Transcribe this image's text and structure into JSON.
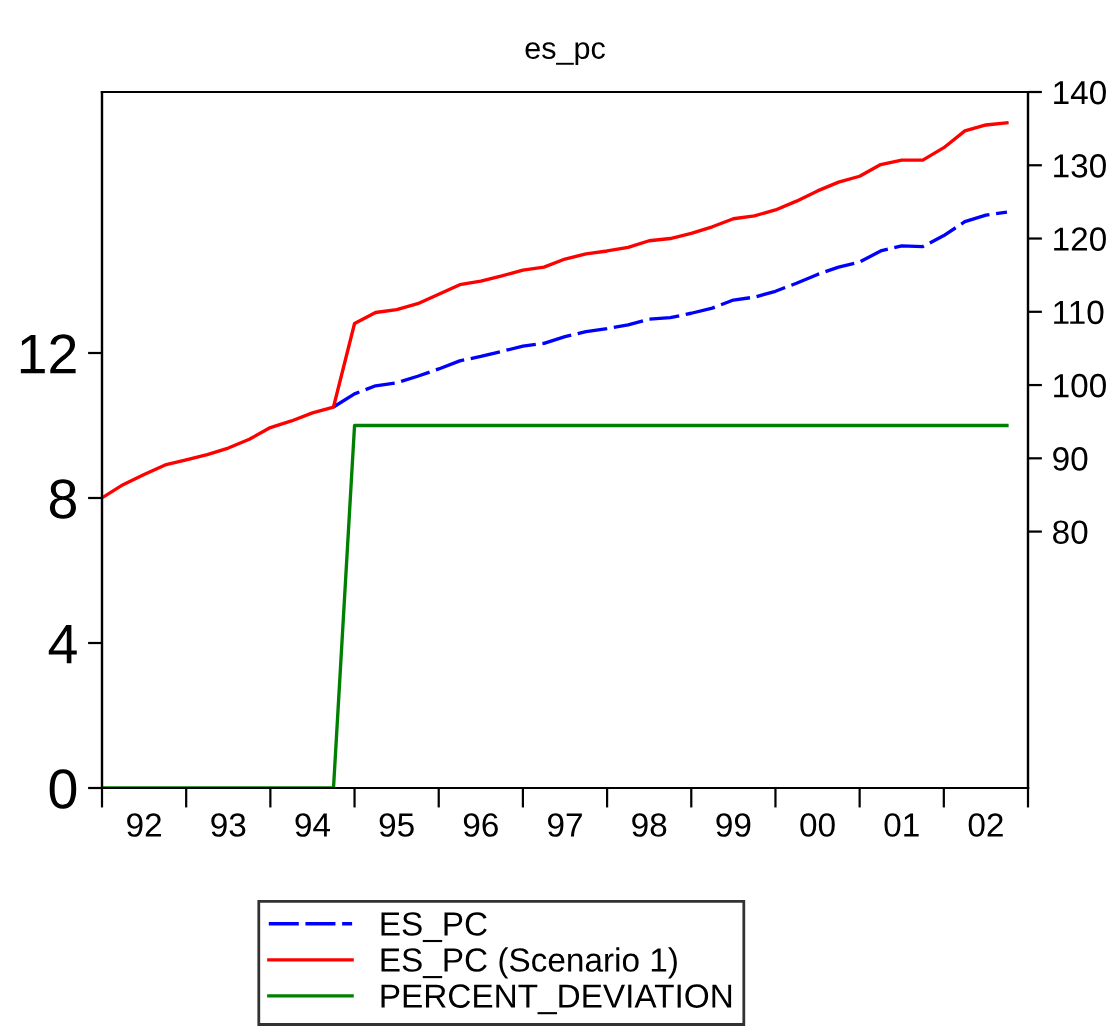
{
  "chart_data": {
    "type": "line",
    "title": "es_pc",
    "categories": [
      null,
      null,
      "92",
      null,
      null,
      null,
      "93",
      null,
      null,
      null,
      "94",
      null,
      null,
      null,
      "95",
      null,
      null,
      null,
      "96",
      null,
      null,
      null,
      "97",
      null,
      null,
      null,
      "98",
      null,
      null,
      null,
      "99",
      null,
      null,
      null,
      "00",
      null,
      null,
      null,
      "01",
      null,
      null,
      null,
      "02",
      null
    ],
    "series": [
      {
        "name": "ES_PC",
        "color": "#0000ff",
        "axis": "y2",
        "line_style": "dashed",
        "values": [
          null,
          null,
          null,
          null,
          null,
          null,
          null,
          null,
          null,
          null,
          null,
          97.0,
          98.8,
          99.9,
          100.3,
          101.2,
          102.2,
          103.3,
          103.9,
          104.6,
          105.3,
          105.7,
          106.6,
          107.3,
          107.7,
          108.2,
          109.0,
          109.2,
          109.8,
          110.5,
          111.6,
          112.0,
          112.8,
          113.9,
          115.1,
          116.1,
          116.8,
          118.3,
          119.0,
          118.9,
          120.4,
          122.3,
          123.2,
          123.6
        ]
      },
      {
        "name": "ES_PC (Scenario 1)",
        "color": "#ff0000",
        "axis": "y2",
        "line_style": "solid",
        "values": [
          84.6,
          86.4,
          87.8,
          89.1,
          89.8,
          90.5,
          91.4,
          92.6,
          94.2,
          95.1,
          96.2,
          97.0,
          108.4,
          109.9,
          110.3,
          111.1,
          112.4,
          113.7,
          114.2,
          114.9,
          115.7,
          116.1,
          117.2,
          117.9,
          118.3,
          118.8,
          119.7,
          120.0,
          120.7,
          121.6,
          122.7,
          123.1,
          123.9,
          125.1,
          126.5,
          127.7,
          128.5,
          130.1,
          130.7,
          130.7,
          132.4,
          134.7,
          135.5,
          135.8
        ]
      },
      {
        "name": "PERCENT_DEVIATION",
        "color": "#008000",
        "axis": "y",
        "line_style": "solid",
        "values": [
          0,
          0,
          0,
          0,
          0,
          0,
          0,
          0,
          0,
          0,
          0,
          0,
          10,
          10,
          10,
          10,
          10,
          10,
          10,
          10,
          10,
          10,
          10,
          10,
          10,
          10,
          10,
          10,
          10,
          10,
          10,
          10,
          10,
          10,
          10,
          10,
          10,
          10,
          10,
          10,
          10,
          10,
          10,
          10
        ]
      }
    ],
    "ylim": [
      0,
      19.2
    ],
    "yticks": [
      0,
      4,
      8,
      12
    ],
    "y2lim": [
      45,
      140
    ],
    "y2ticks": [
      80,
      90,
      100,
      110,
      120,
      130,
      140
    ],
    "grid": false,
    "legend": "bottom",
    "marker": "none"
  }
}
